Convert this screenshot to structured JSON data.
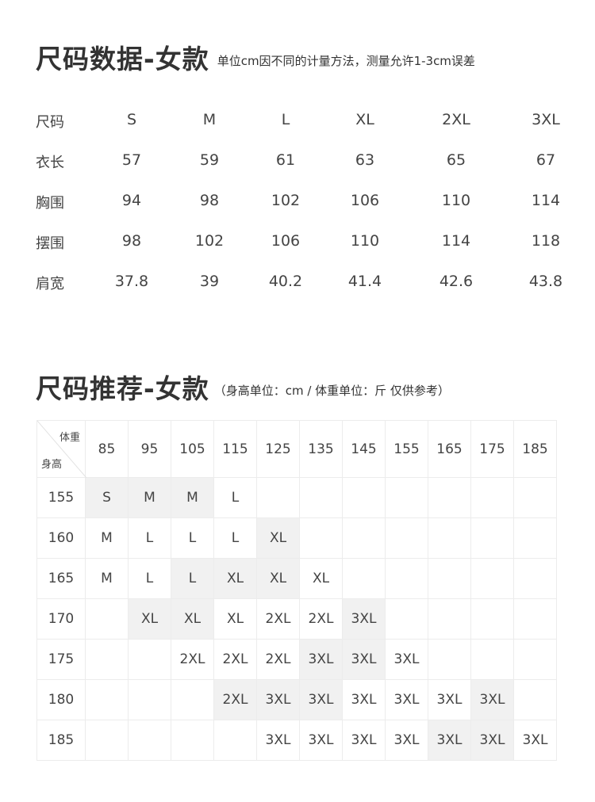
{
  "spec": {
    "title": "尺码数据-女款",
    "subtitle": "单位cm因不同的计量方法，测量允许1-3cm误差",
    "header": [
      "尺码",
      "S",
      "M",
      "L",
      "XL",
      "2XL",
      "3XL"
    ],
    "rows": [
      [
        "衣长",
        "57",
        "59",
        "61",
        "63",
        "65",
        "67"
      ],
      [
        "胸围",
        "94",
        "98",
        "102",
        "106",
        "110",
        "114"
      ],
      [
        "摆围",
        "98",
        "102",
        "106",
        "110",
        "114",
        "118"
      ],
      [
        "肩宽",
        "37.8",
        "39",
        "40.2",
        "41.4",
        "42.6",
        "43.8"
      ]
    ]
  },
  "recommend": {
    "title": "尺码推荐-女款",
    "subtitle": "（身高单位：cm / 体重单位：斤 仅供参考）",
    "corner_weight": "体重",
    "corner_height": "身高",
    "weights": [
      "85",
      "95",
      "105",
      "115",
      "125",
      "135",
      "145",
      "155",
      "165",
      "175",
      "185"
    ],
    "rows": [
      {
        "height": "155",
        "cells": [
          "S",
          "M",
          "M",
          "L",
          "",
          "",
          "",
          "",
          "",
          "",
          ""
        ],
        "highlight": [
          1,
          1,
          1,
          0,
          0,
          0,
          0,
          0,
          0,
          0,
          0
        ]
      },
      {
        "height": "160",
        "cells": [
          "M",
          "L",
          "L",
          "L",
          "XL",
          "",
          "",
          "",
          "",
          "",
          ""
        ],
        "highlight": [
          0,
          0,
          0,
          0,
          1,
          0,
          0,
          0,
          0,
          0,
          0
        ]
      },
      {
        "height": "165",
        "cells": [
          "M",
          "L",
          "L",
          "XL",
          "XL",
          "XL",
          "",
          "",
          "",
          "",
          ""
        ],
        "highlight": [
          0,
          0,
          1,
          1,
          1,
          0,
          0,
          0,
          0,
          0,
          0
        ]
      },
      {
        "height": "170",
        "cells": [
          "",
          "XL",
          "XL",
          "XL",
          "2XL",
          "2XL",
          "3XL",
          "",
          "",
          "",
          ""
        ],
        "highlight": [
          0,
          1,
          1,
          0,
          0,
          0,
          1,
          0,
          0,
          0,
          0
        ]
      },
      {
        "height": "175",
        "cells": [
          "",
          "",
          "2XL",
          "2XL",
          "2XL",
          "3XL",
          "3XL",
          "3XL",
          "",
          "",
          ""
        ],
        "highlight": [
          0,
          0,
          0,
          0,
          0,
          1,
          1,
          0,
          0,
          0,
          0
        ]
      },
      {
        "height": "180",
        "cells": [
          "",
          "",
          "",
          "2XL",
          "3XL",
          "3XL",
          "3XL",
          "3XL",
          "3XL",
          "3XL",
          ""
        ],
        "highlight": [
          0,
          0,
          0,
          1,
          1,
          1,
          0,
          0,
          0,
          1,
          0
        ]
      },
      {
        "height": "185",
        "cells": [
          "",
          "",
          "",
          "",
          "3XL",
          "3XL",
          "3XL",
          "3XL",
          "3XL",
          "3XL",
          "3XL"
        ],
        "highlight": [
          0,
          0,
          0,
          0,
          0,
          0,
          0,
          0,
          1,
          1,
          0
        ]
      }
    ],
    "highlight_color": "#f1f1f1"
  }
}
